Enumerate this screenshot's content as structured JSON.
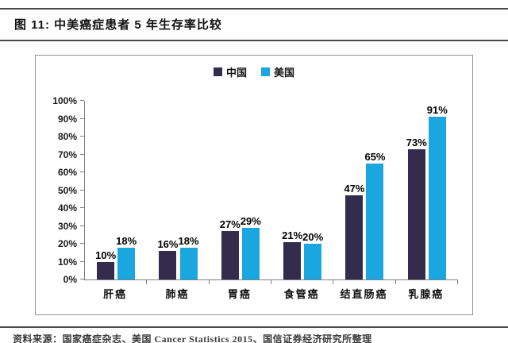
{
  "header": {
    "title": "图 11: 中美癌症患者 5 年生存率比较"
  },
  "chart_data": {
    "type": "bar",
    "title": "中美癌症患者 5 年生存率比较",
    "categories": [
      "肝癌",
      "肺癌",
      "胃癌",
      "食管癌",
      "结直肠癌",
      "乳腺癌"
    ],
    "series": [
      {
        "name": "中国",
        "color": "#332C4D",
        "values": [
          10,
          16,
          27,
          21,
          47,
          73
        ]
      },
      {
        "name": "美国",
        "color": "#1AA7E0",
        "values": [
          18,
          18,
          29,
          20,
          65,
          91
        ]
      }
    ],
    "value_suffix": "%",
    "xlabel": "",
    "ylabel": "",
    "ylim": [
      0,
      100
    ],
    "ytick_step": 10,
    "yticks": [
      "100%",
      "90%",
      "80%",
      "70%",
      "60%",
      "50%",
      "40%",
      "30%",
      "20%",
      "10%",
      "0%"
    ],
    "legend_position": "top-center",
    "grid": false,
    "data_labels": true
  },
  "footer": {
    "source": "资料来源：国家癌症杂志、美国 Cancer Statistics 2015、国信证券经济研究所整理"
  }
}
